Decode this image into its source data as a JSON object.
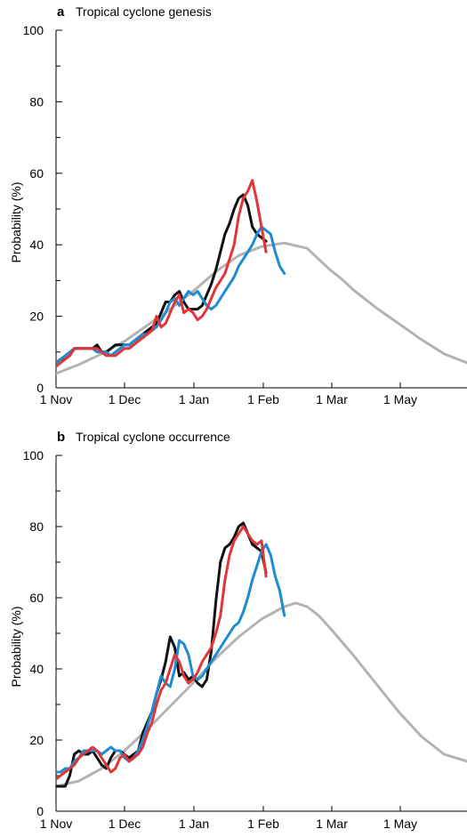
{
  "chart_data": [
    {
      "type": "line",
      "panel_letter": "a",
      "title": "Tropical cyclone genesis",
      "xlabel": "",
      "ylabel": "Probability (%)",
      "ylim": [
        0,
        100
      ],
      "yticks": [
        "0",
        "20",
        "40",
        "60",
        "80",
        "100"
      ],
      "xticks": [
        "1 Nov",
        "1 Dec",
        "1 Jan",
        "1 Feb",
        "1 Mar",
        "1 May"
      ],
      "series": [
        {
          "color": "#b3b3b3",
          "x": [
            0,
            10,
            20,
            30,
            40,
            50,
            60,
            70,
            80,
            90,
            100,
            110,
            115,
            120,
            125,
            130,
            140,
            150,
            160,
            170,
            180
          ],
          "y": [
            4,
            6.5,
            9.5,
            13,
            17.5,
            22,
            27,
            32.5,
            37,
            39.5,
            40.5,
            39,
            36,
            33,
            30.5,
            27.5,
            22.5,
            18,
            13.5,
            9.5,
            7
          ]
        },
        {
          "color": "#111111",
          "x": [
            0,
            2,
            4,
            6,
            8,
            10,
            12,
            14,
            16,
            18,
            20,
            22,
            24,
            26,
            28,
            30,
            32,
            34,
            36,
            38,
            40,
            42,
            44,
            46,
            48,
            50,
            52,
            54,
            56,
            58,
            60,
            62,
            64,
            66,
            68,
            70,
            72,
            74,
            76,
            78,
            80,
            82,
            84,
            86,
            88,
            90,
            92
          ],
          "y": [
            7,
            8,
            8,
            9,
            11,
            11,
            11,
            11,
            11,
            12,
            10,
            10,
            11,
            12,
            12,
            12,
            12,
            13,
            14,
            15,
            16,
            17,
            18,
            21,
            24,
            24,
            26,
            27,
            24,
            22,
            22,
            22,
            23,
            26,
            29,
            33,
            38,
            43,
            46,
            50,
            53,
            54,
            51,
            45,
            43,
            42,
            41
          ]
        },
        {
          "color": "#1f8bd1",
          "x": [
            0,
            2,
            4,
            6,
            8,
            10,
            12,
            14,
            16,
            18,
            20,
            22,
            24,
            26,
            28,
            30,
            32,
            34,
            36,
            38,
            40,
            42,
            44,
            46,
            48,
            50,
            52,
            54,
            56,
            58,
            60,
            62,
            64,
            66,
            68,
            70,
            72,
            74,
            76,
            78,
            80,
            82,
            84,
            86,
            88,
            90,
            92,
            94,
            96,
            98,
            100
          ],
          "y": [
            7,
            8,
            9,
            10,
            11,
            11,
            11,
            11,
            11,
            10,
            10,
            10,
            9,
            10,
            11,
            12,
            12,
            13,
            14,
            15,
            15,
            16,
            17,
            19,
            21,
            24,
            25,
            23,
            25,
            27,
            26,
            27,
            25,
            23,
            22,
            23,
            25,
            27,
            29,
            31,
            34,
            36,
            38,
            40,
            43,
            45,
            44,
            43,
            38,
            34,
            32
          ]
        },
        {
          "color": "#e03539",
          "x": [
            0,
            2,
            4,
            6,
            8,
            10,
            12,
            14,
            16,
            18,
            20,
            22,
            24,
            26,
            28,
            30,
            32,
            34,
            36,
            38,
            40,
            42,
            44,
            46,
            48,
            50,
            52,
            54,
            56,
            58,
            60,
            62,
            64,
            66,
            68,
            70,
            72,
            74,
            76,
            78,
            80,
            82,
            84,
            86,
            88,
            90,
            92
          ],
          "y": [
            6,
            7,
            8,
            9,
            11,
            11,
            11,
            11,
            11,
            11,
            10,
            9,
            9,
            9,
            10,
            11,
            11,
            12,
            13,
            14,
            15,
            16,
            20,
            17,
            18,
            21,
            24,
            26,
            21,
            22,
            21,
            19,
            20,
            22,
            25,
            28,
            30,
            32,
            36,
            40,
            48,
            53,
            55,
            58,
            52,
            45,
            38
          ]
        }
      ]
    },
    {
      "type": "line",
      "panel_letter": "b",
      "title": "Tropical cyclone occurrence",
      "xlabel": "",
      "ylabel": "Probability (%)",
      "ylim": [
        0,
        100
      ],
      "yticks": [
        "0",
        "20",
        "40",
        "60",
        "80",
        "100"
      ],
      "xticks": [
        "1 Nov",
        "1 Dec",
        "1 Jan",
        "1 Feb",
        "1 Mar",
        "1 May"
      ],
      "series": [
        {
          "color": "#b3b3b3",
          "x": [
            0,
            10,
            20,
            30,
            40,
            50,
            60,
            70,
            80,
            90,
            100,
            105,
            110,
            115,
            120,
            130,
            140,
            150,
            160,
            170,
            180
          ],
          "y": [
            7,
            8.5,
            12,
            17,
            23,
            29.5,
            36,
            43,
            49,
            54,
            57.5,
            58.5,
            57.5,
            55,
            51.5,
            44,
            36,
            28,
            21,
            16,
            14
          ]
        },
        {
          "color": "#111111",
          "x": [
            0,
            2,
            4,
            6,
            8,
            10,
            12,
            14,
            16,
            18,
            20,
            22,
            24,
            26,
            28,
            30,
            32,
            34,
            36,
            38,
            40,
            42,
            44,
            46,
            48,
            50,
            52,
            54,
            56,
            58,
            60,
            62,
            64,
            66,
            68,
            70,
            72,
            74,
            76,
            78,
            80,
            82,
            84,
            86,
            88,
            90,
            92
          ],
          "y": [
            7,
            7,
            7,
            10,
            16,
            17,
            16,
            16,
            17,
            15,
            13,
            12,
            15,
            17,
            17,
            16,
            15,
            16,
            17,
            22,
            25,
            28,
            33,
            37,
            42,
            49,
            46,
            38,
            39,
            37,
            38,
            36,
            35,
            37,
            45,
            59,
            70,
            74,
            75,
            77,
            80,
            81,
            78,
            75,
            74,
            73,
            67
          ]
        },
        {
          "color": "#1f8bd1",
          "x": [
            0,
            2,
            4,
            6,
            8,
            10,
            12,
            14,
            16,
            18,
            20,
            22,
            24,
            26,
            28,
            30,
            32,
            34,
            36,
            38,
            40,
            42,
            44,
            46,
            48,
            50,
            52,
            54,
            56,
            58,
            60,
            62,
            64,
            66,
            68,
            70,
            72,
            74,
            76,
            78,
            80,
            82,
            84,
            86,
            88,
            90,
            92,
            94,
            96,
            98,
            100
          ],
          "y": [
            11,
            11,
            12,
            12,
            14,
            15,
            17,
            17,
            17,
            17,
            16,
            17,
            18,
            17,
            17,
            15,
            14,
            15,
            17,
            20,
            24,
            28,
            33,
            38,
            36,
            35,
            40,
            48,
            47,
            44,
            38,
            37,
            38,
            40,
            42,
            44,
            46,
            48,
            50,
            52,
            53,
            56,
            60,
            65,
            69,
            73,
            75,
            72,
            66,
            62,
            55
          ]
        },
        {
          "color": "#e03539",
          "x": [
            0,
            2,
            4,
            6,
            8,
            10,
            12,
            14,
            16,
            18,
            20,
            22,
            24,
            26,
            28,
            30,
            32,
            34,
            36,
            38,
            40,
            42,
            44,
            46,
            48,
            50,
            52,
            54,
            56,
            58,
            60,
            62,
            64,
            66,
            68,
            70,
            72,
            74,
            76,
            78,
            80,
            82,
            84,
            86,
            88,
            90,
            92
          ],
          "y": [
            9,
            10,
            11,
            12,
            13,
            15,
            16,
            17,
            18,
            17,
            15,
            13,
            11,
            12,
            15,
            16,
            14,
            15,
            16,
            18,
            22,
            25,
            30,
            34,
            36,
            40,
            44,
            42,
            38,
            36,
            37,
            39,
            42,
            44,
            46,
            50,
            55,
            65,
            72,
            76,
            78,
            80,
            78,
            76,
            75,
            76,
            66
          ]
        }
      ]
    }
  ]
}
